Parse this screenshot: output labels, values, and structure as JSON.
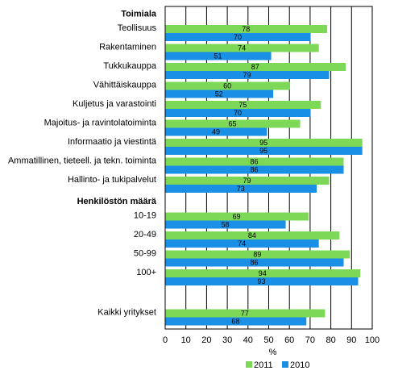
{
  "chart_data": {
    "type": "bar",
    "orientation": "horizontal",
    "xlabel": "%",
    "xlim": [
      0,
      100
    ],
    "xticks": [
      0,
      10,
      20,
      30,
      40,
      50,
      60,
      70,
      80,
      90,
      100
    ],
    "grid": "vertical",
    "legend_position": "bottom",
    "colors": {
      "2011": "#7dd857",
      "2010": "#1a8fe6"
    },
    "groups": [
      {
        "heading": "Toimiala",
        "rows": [
          {
            "label": "Teollisuus",
            "v2011": 78,
            "v2010": 70
          },
          {
            "label": "Rakentaminen",
            "v2011": 74,
            "v2010": 51
          },
          {
            "label": "Tukkukauppa",
            "v2011": 87,
            "v2010": 79
          },
          {
            "label": "Vähittäiskauppa",
            "v2011": 60,
            "v2010": 52
          },
          {
            "label": "Kuljetus ja varastointi",
            "v2011": 75,
            "v2010": 70
          },
          {
            "label": "Majoitus- ja ravintolatoiminta",
            "v2011": 65,
            "v2010": 49
          },
          {
            "label": "Informaatio ja viestintä",
            "v2011": 95,
            "v2010": 95
          },
          {
            "label": "Ammatillinen, tieteell. ja tekn. toiminta",
            "v2011": 86,
            "v2010": 86
          },
          {
            "label": "Hallinto- ja tukipalvelut",
            "v2011": 79,
            "v2010": 73
          }
        ]
      },
      {
        "heading": "Henkilöstön määrä",
        "rows": [
          {
            "label": "10-19",
            "v2011": 69,
            "v2010": 58
          },
          {
            "label": "20-49",
            "v2011": 84,
            "v2010": 74
          },
          {
            "label": "50-99",
            "v2011": 89,
            "v2010": 86
          },
          {
            "label": "100+",
            "v2011": 94,
            "v2010": 93
          }
        ]
      },
      {
        "heading": "",
        "rows": [
          {
            "label": "Kaikki yritykset",
            "v2011": 77,
            "v2010": 68
          }
        ]
      }
    ],
    "legend": [
      {
        "key": "2011",
        "label": "2011"
      },
      {
        "key": "2010",
        "label": "2010"
      }
    ]
  }
}
